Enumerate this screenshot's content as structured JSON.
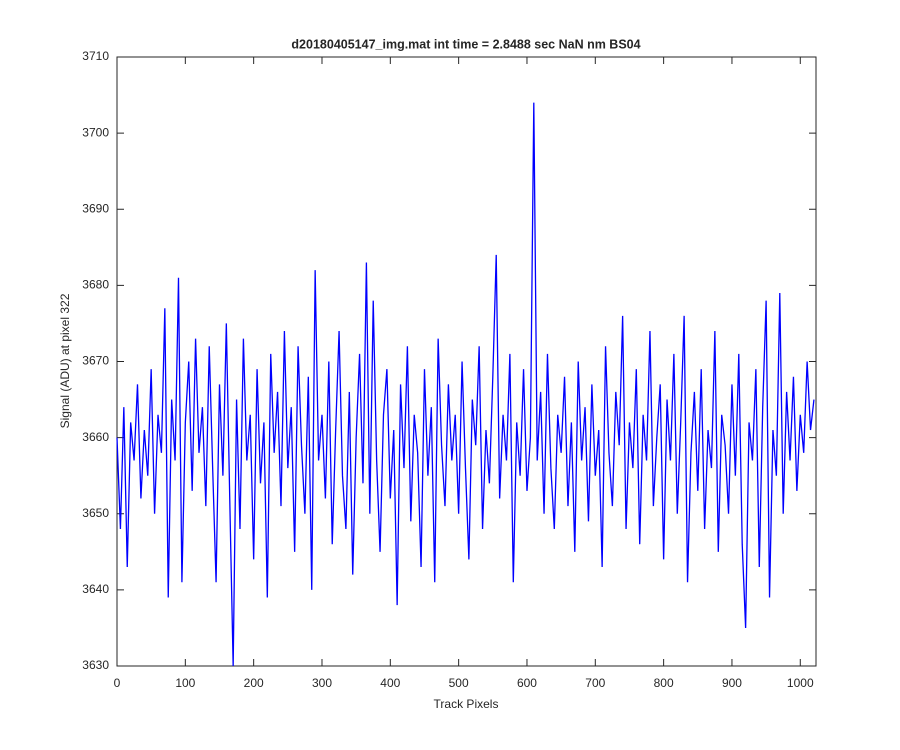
{
  "chart_data": {
    "type": "line",
    "title": "d20180405147_img.mat int time = 2.8488 sec  NaN nm BS04",
    "x_label": "Track Pixels",
    "y_label": "Signal (ADU) at pixel 322",
    "x": [
      0,
      5,
      10,
      15,
      20,
      25,
      30,
      35,
      40,
      45,
      50,
      55,
      60,
      65,
      70,
      75,
      80,
      85,
      90,
      95,
      100,
      105,
      110,
      115,
      120,
      125,
      130,
      135,
      140,
      145,
      150,
      155,
      160,
      165,
      170,
      175,
      180,
      185,
      190,
      195,
      200,
      205,
      210,
      215,
      220,
      225,
      230,
      235,
      240,
      245,
      250,
      255,
      260,
      265,
      270,
      275,
      280,
      285,
      290,
      295,
      300,
      305,
      310,
      315,
      320,
      325,
      330,
      335,
      340,
      345,
      350,
      355,
      360,
      365,
      370,
      375,
      380,
      385,
      390,
      395,
      400,
      405,
      410,
      415,
      420,
      425,
      430,
      435,
      440,
      445,
      450,
      455,
      460,
      465,
      470,
      475,
      480,
      485,
      490,
      495,
      500,
      505,
      510,
      515,
      520,
      525,
      530,
      535,
      540,
      545,
      550,
      555,
      560,
      565,
      570,
      575,
      580,
      585,
      590,
      595,
      600,
      605,
      610,
      615,
      620,
      625,
      630,
      635,
      640,
      645,
      650,
      655,
      660,
      665,
      670,
      675,
      680,
      685,
      690,
      695,
      700,
      705,
      710,
      715,
      720,
      725,
      730,
      735,
      740,
      745,
      750,
      755,
      760,
      765,
      770,
      775,
      780,
      785,
      790,
      795,
      800,
      805,
      810,
      815,
      820,
      825,
      830,
      835,
      840,
      845,
      850,
      855,
      860,
      865,
      870,
      875,
      880,
      885,
      890,
      895,
      900,
      905,
      910,
      915,
      920,
      925,
      930,
      935,
      940,
      945,
      950,
      955,
      960,
      965,
      970,
      975,
      980,
      985,
      990,
      995,
      1000,
      1005,
      1010,
      1015,
      1020
    ],
    "series": [
      {
        "name": "signal",
        "color": "#0000ff",
        "values": [
          3660,
          3648,
          3664,
          3643,
          3662,
          3657,
          3667,
          3652,
          3661,
          3655,
          3669,
          3650,
          3663,
          3658,
          3677,
          3639,
          3665,
          3657,
          3681,
          3641,
          3662,
          3670,
          3653,
          3673,
          3658,
          3664,
          3651,
          3672,
          3656,
          3641,
          3667,
          3655,
          3675,
          3652,
          3630,
          3665,
          3648,
          3673,
          3657,
          3663,
          3644,
          3669,
          3654,
          3662,
          3639,
          3671,
          3658,
          3666,
          3651,
          3674,
          3656,
          3664,
          3645,
          3672,
          3659,
          3650,
          3668,
          3640,
          3682,
          3657,
          3663,
          3652,
          3670,
          3646,
          3661,
          3674,
          3655,
          3648,
          3666,
          3642,
          3660,
          3671,
          3654,
          3683,
          3650,
          3678,
          3657,
          3645,
          3663,
          3669,
          3652,
          3661,
          3638,
          3667,
          3656,
          3672,
          3649,
          3663,
          3658,
          3643,
          3669,
          3655,
          3664,
          3641,
          3673,
          3659,
          3651,
          3667,
          3657,
          3663,
          3650,
          3670,
          3656,
          3644,
          3665,
          3659,
          3672,
          3648,
          3661,
          3654,
          3668,
          3684,
          3652,
          3663,
          3657,
          3671,
          3641,
          3662,
          3655,
          3669,
          3653,
          3660,
          3704,
          3657,
          3666,
          3650,
          3671,
          3656,
          3648,
          3663,
          3658,
          3668,
          3651,
          3662,
          3645,
          3670,
          3657,
          3664,
          3649,
          3667,
          3655,
          3661,
          3643,
          3672,
          3658,
          3651,
          3666,
          3659,
          3676,
          3648,
          3662,
          3656,
          3669,
          3646,
          3663,
          3657,
          3674,
          3651,
          3660,
          3667,
          3644,
          3665,
          3657,
          3671,
          3650,
          3662,
          3676,
          3641,
          3658,
          3666,
          3653,
          3669,
          3648,
          3661,
          3656,
          3674,
          3645,
          3663,
          3659,
          3650,
          3667,
          3655,
          3671,
          3646,
          3635,
          3662,
          3657,
          3669,
          3643,
          3664,
          3678,
          3639,
          3661,
          3655,
          3679,
          3650,
          3666,
          3657,
          3668,
          3653,
          3663,
          3658,
          3670,
          3661,
          3665
        ]
      }
    ],
    "xlim": [
      0,
      1023
    ],
    "ylim": [
      3630,
      3710
    ],
    "xticks": [
      0,
      100,
      200,
      300,
      400,
      500,
      600,
      700,
      800,
      900,
      1000
    ],
    "yticks": [
      3630,
      3640,
      3650,
      3660,
      3670,
      3680,
      3690,
      3700,
      3710
    ],
    "grid": false
  }
}
